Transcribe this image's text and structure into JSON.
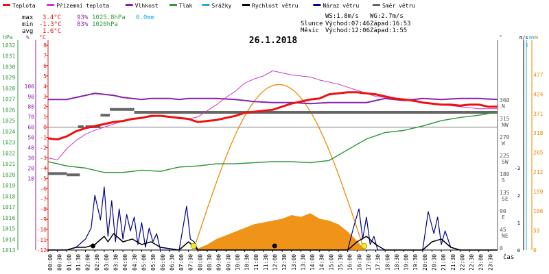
{
  "chart_data": {
    "type": "line",
    "title": "26.1.2018",
    "xlabel": "čas",
    "legend": {
      "placement": "top",
      "items": [
        {
          "name": "Teplota",
          "color": "#ee1111"
        },
        {
          "name": "Přízemní teplota",
          "color": "#cc33cc"
        },
        {
          "name": "Vlhkost",
          "color": "#8822aa"
        },
        {
          "name": "Tlak",
          "color": "#33993f"
        },
        {
          "name": "Srážky",
          "color": "#22aadd"
        },
        {
          "name": "Rychlost větru",
          "color": "#000000"
        },
        {
          "name": "Náraz větru",
          "color": "#000088"
        },
        {
          "name": "Směr větru",
          "color": "#666666"
        }
      ]
    },
    "stats": {
      "max": {
        "label": "max",
        "temp": "3.4°C",
        "humidity": "93%",
        "pressure": "1025.8hPa",
        "rain": "0.0mm"
      },
      "min": {
        "label": "min",
        "temp": "-1.3°C",
        "humidity": "83%",
        "pressure": "1020hPa"
      },
      "avg": {
        "label": "avg",
        "temp": "1.6°C"
      }
    },
    "wind_info": {
      "ws": "WS:1.8m/s",
      "wg": "WG:2.7m/s"
    },
    "sun_info": {
      "label": "Slunce",
      "rise": "Východ:07:46",
      "set": "Západ:16:53"
    },
    "moon_info": {
      "label": "Měsíc",
      "rise": "Východ:12:06",
      "set": "Západ:1:55"
    },
    "axes": {
      "pressure": {
        "unit": "hPa",
        "ticks": [
          "1032",
          "1031",
          "1030",
          "1029",
          "1028",
          "1027",
          "1026",
          "1025",
          "1024",
          "1023",
          "1022",
          "1021",
          "1020",
          "1019",
          "1018",
          "1017",
          "1016",
          "1015",
          "1014",
          "1013"
        ],
        "range": [
          1013,
          1032
        ],
        "color": "#33993f"
      },
      "humidity": {
        "unit": "%",
        "ticks": [
          "100",
          "90",
          "80",
          "70",
          "60",
          "50",
          "40",
          "30",
          "20",
          "10"
        ],
        "range": [
          0,
          105
        ],
        "color": "#8822aa"
      },
      "temperature": {
        "unit": "°C",
        "ticks": [
          "8",
          "7",
          "6",
          "5",
          "4",
          "3",
          "2",
          "1",
          "0",
          "-1",
          "-2",
          "-3",
          "-4",
          "-5",
          "-6",
          "-7",
          "-8",
          "-9",
          "-10",
          "-11",
          "-12"
        ],
        "range": [
          -12,
          8
        ],
        "color": "#ee1111"
      },
      "direction": {
        "unit": "°",
        "ticks": [
          [
            "360",
            "N"
          ],
          [
            "315",
            "NW"
          ],
          [
            "270",
            "W"
          ],
          [
            "225",
            "SW"
          ],
          [
            "180",
            "S"
          ],
          [
            "135",
            "SE"
          ],
          [
            "90",
            "E"
          ],
          [
            "45",
            "NE"
          ],
          [
            "0",
            ""
          ]
        ],
        "range": [
          0,
          360
        ],
        "color": "#555555"
      },
      "wind": {
        "unit": "m/s",
        "ticks": [
          "-3",
          "2",
          "1",
          "0"
        ],
        "color": "#000000"
      },
      "rain": {
        "unit": "mm",
        "ticks": [
          "-1"
        ],
        "color": "#22aadd"
      },
      "solar": {
        "unit": "W",
        "ticks": [
          "477",
          "424",
          "371",
          "318",
          "265",
          "212",
          "159",
          "106",
          "53",
          "0"
        ],
        "range": [
          0,
          530
        ],
        "color": "#ee8800"
      },
      "time": {
        "ticks": [
          "00:00",
          "00:30",
          "01:00",
          "01:30",
          "02:00",
          "02:30",
          "03:00",
          "03:30",
          "04:00",
          "04:30",
          "05:00",
          "05:30",
          "06:00",
          "06:30",
          "07:00",
          "07:30",
          "08:00",
          "08:30",
          "09:00",
          "09:30",
          "10:00",
          "10:30",
          "11:00",
          "11:30",
          "12:00",
          "12:30",
          "13:00",
          "13:30",
          "14:00",
          "14:30",
          "15:00",
          "15:30",
          "16:00",
          "16:30",
          "17:00",
          "17:30",
          "18:00",
          "18:30",
          "19:00",
          "19:30",
          "20:00",
          "20:30",
          "21:00",
          "21:30",
          "22:00",
          "22:30",
          "23:00",
          "23:30"
        ],
        "range": [
          0,
          24
        ]
      }
    },
    "series": [
      {
        "name": "Teplota",
        "color": "#ee1111",
        "x": [
          0,
          0.5,
          1,
          1.5,
          2,
          2.5,
          3,
          3.5,
          4,
          4.5,
          5,
          5.5,
          6,
          6.5,
          7,
          7.5,
          8,
          8.5,
          9,
          9.5,
          10,
          10.5,
          11,
          11.5,
          12,
          12.5,
          13,
          13.5,
          14,
          14.5,
          15,
          15.5,
          16,
          16.5,
          17,
          17.5,
          18,
          18.5,
          19,
          19.5,
          20,
          20.5,
          21,
          21.5,
          22,
          22.5,
          23,
          23.5,
          24
        ],
        "y": [
          -1.1,
          -1.2,
          -0.9,
          -0.4,
          -0.1,
          0.1,
          0.3,
          0.5,
          0.6,
          0.8,
          0.9,
          1.1,
          1.1,
          1.0,
          0.9,
          0.8,
          0.5,
          0.6,
          0.7,
          0.9,
          1.1,
          1.4,
          1.5,
          1.6,
          1.7,
          2.0,
          2.3,
          2.5,
          2.7,
          2.8,
          3.2,
          3.3,
          3.4,
          3.4,
          3.3,
          3.2,
          3.0,
          2.8,
          2.7,
          2.6,
          2.4,
          2.3,
          2.2,
          2.2,
          2.1,
          2.2,
          2.2,
          2.0,
          2.0
        ]
      },
      {
        "name": "Přízemní teplota",
        "color": "#cc33cc",
        "x": [
          0,
          0.5,
          1,
          1.5,
          2,
          2.5,
          3,
          3.5,
          4,
          4.5,
          5,
          5.5,
          6,
          6.5,
          7,
          7.5,
          8,
          8.5,
          9,
          9.5,
          10,
          10.5,
          11,
          11.5,
          12,
          12.5,
          13,
          13.5,
          14,
          14.5,
          15,
          15.5,
          16,
          16.5,
          17,
          17.5,
          18,
          18.5,
          19,
          19.5,
          20,
          20.5,
          21,
          21.5,
          22,
          22.5,
          23,
          23.5,
          24
        ],
        "y": [
          -3.0,
          -3.2,
          -2.1,
          -1.3,
          -0.7,
          -0.3,
          0.0,
          0.3,
          0.6,
          0.8,
          0.9,
          1.0,
          1.1,
          1.0,
          0.8,
          0.8,
          1.0,
          1.6,
          2.2,
          2.9,
          3.5,
          4.3,
          4.7,
          5.0,
          5.5,
          5.3,
          5.1,
          5.0,
          4.9,
          4.6,
          4.4,
          4.2,
          3.9,
          3.6,
          3.3,
          3.0,
          2.9,
          2.8,
          2.7,
          2.5,
          2.4,
          2.3,
          2.2,
          2.1,
          2.0,
          1.9,
          1.8,
          1.8,
          1.8
        ]
      },
      {
        "name": "Vlhkost",
        "color": "#8822aa",
        "x": [
          0,
          1,
          2,
          2.5,
          3,
          3.5,
          4,
          4.5,
          5,
          5.5,
          6,
          6.5,
          7,
          7.5,
          8,
          9,
          10,
          11,
          12,
          13,
          14,
          15,
          16,
          17,
          18,
          19,
          20,
          21,
          22,
          23,
          24
        ],
        "y": [
          87,
          87,
          91,
          93,
          92,
          91,
          89,
          88,
          87,
          88,
          88,
          88,
          87,
          88,
          88,
          88,
          87,
          85,
          84,
          84,
          83,
          84,
          84,
          84,
          88,
          86,
          88,
          87,
          88,
          88,
          87
        ]
      },
      {
        "name": "Tlak",
        "color": "#33993f",
        "x": [
          0,
          1,
          2,
          3,
          4,
          5,
          6,
          7,
          8,
          9,
          10,
          11,
          12,
          13,
          14,
          15,
          15.5,
          16,
          16.5,
          17,
          17.5,
          18,
          19,
          20,
          21,
          22,
          23,
          24
        ],
        "y": [
          1021.2,
          1020.8,
          1020.6,
          1020.2,
          1020.2,
          1020.4,
          1020.3,
          1020.7,
          1020.8,
          1021.0,
          1021.0,
          1021.1,
          1021.2,
          1021.2,
          1021.1,
          1021.3,
          1021.8,
          1022.3,
          1022.8,
          1023.3,
          1023.6,
          1023.9,
          1024.1,
          1024.5,
          1025.0,
          1025.3,
          1025.5,
          1025.8
        ]
      },
      {
        "name": "Náraz větru",
        "color": "#000088",
        "x": [
          0,
          1,
          1.5,
          2,
          2.3,
          2.5,
          2.8,
          3.0,
          3.2,
          3.4,
          3.6,
          3.8,
          4.0,
          4.2,
          4.4,
          4.6,
          4.8,
          5.0,
          5.2,
          5.4,
          5.6,
          5.8,
          6.0,
          6.5,
          7.0,
          7.4,
          7.6,
          7.8,
          8.0,
          8.5,
          9,
          10,
          11,
          12,
          13,
          14,
          15,
          16,
          16.3,
          16.6,
          16.8,
          17.0,
          17.2,
          17.4,
          17.6,
          18,
          19,
          20,
          20.3,
          20.6,
          20.8,
          21,
          21.2,
          21.5,
          22,
          23,
          24
        ],
        "y": [
          0,
          0,
          0.1,
          0.4,
          0.8,
          2.0,
          1.1,
          2.3,
          0.5,
          1.8,
          0.3,
          1.5,
          0.4,
          1.3,
          0.7,
          1.2,
          0.2,
          1.0,
          0.1,
          0.8,
          0.3,
          0.6,
          0,
          0,
          0,
          1.6,
          0.4,
          0.3,
          0,
          0,
          0,
          0,
          0,
          0,
          0,
          0,
          0,
          0,
          0.8,
          1.5,
          0.4,
          1.2,
          0.2,
          0.5,
          0,
          0,
          0,
          0,
          1.4,
          0.6,
          1.2,
          0.2,
          0.7,
          0.1,
          0,
          0,
          0
        ]
      },
      {
        "name": "Rychlost větru",
        "color": "#000000",
        "x": [
          0,
          1,
          1.5,
          2,
          2.5,
          3,
          3.2,
          3.5,
          4,
          4.5,
          5,
          5.5,
          6,
          7,
          7.5,
          8,
          9,
          10,
          11,
          12,
          13,
          14,
          15,
          16,
          16.5,
          17,
          17.5,
          18,
          19,
          20,
          20.5,
          21,
          21.5,
          22,
          23,
          24
        ],
        "y": [
          0,
          0,
          0.1,
          0.1,
          0.2,
          0.5,
          0.3,
          0.6,
          0.3,
          0.4,
          0.2,
          0.3,
          0.1,
          0,
          0.3,
          0,
          0,
          0,
          0,
          0,
          0,
          0,
          0,
          0,
          0.3,
          0.5,
          0.2,
          0,
          0,
          0,
          0.3,
          0.4,
          0.1,
          0,
          0,
          0
        ]
      }
    ],
    "direction_series": {
      "name": "Směr větru",
      "color": "#666666",
      "segments": [
        [
          0.0,
          1.0,
          186
        ],
        [
          1.0,
          1.7,
          183
        ],
        [
          1.6,
          1.9,
          300
        ],
        [
          2.0,
          2.8,
          300
        ],
        [
          2.8,
          3.3,
          328
        ],
        [
          3.3,
          4.6,
          342
        ],
        [
          4.6,
          24.0,
          335
        ]
      ]
    },
    "solar_series": {
      "name": "Sluneční záření",
      "color": "#ee8800",
      "x": [
        7.8,
        8.5,
        9.0,
        9.5,
        10.0,
        10.5,
        11.0,
        11.5,
        12.0,
        12.5,
        13.0,
        13.5,
        14.0,
        14.5,
        15.0,
        15.5,
        16.0,
        16.5,
        16.9
      ],
      "y": [
        0,
        15,
        30,
        40,
        50,
        60,
        70,
        75,
        80,
        85,
        95,
        90,
        100,
        85,
        80,
        70,
        50,
        25,
        0
      ]
    },
    "sun_path": {
      "color": "#ee8800",
      "rise_hour": 7.77,
      "set_hour": 16.88,
      "peak_hour": 12.3,
      "peak_watts": 450
    },
    "moon_marker": {
      "hour": 12.1
    },
    "sun_markers": [
      {
        "hour": 7.77
      },
      {
        "hour": 16.88
      }
    ]
  }
}
